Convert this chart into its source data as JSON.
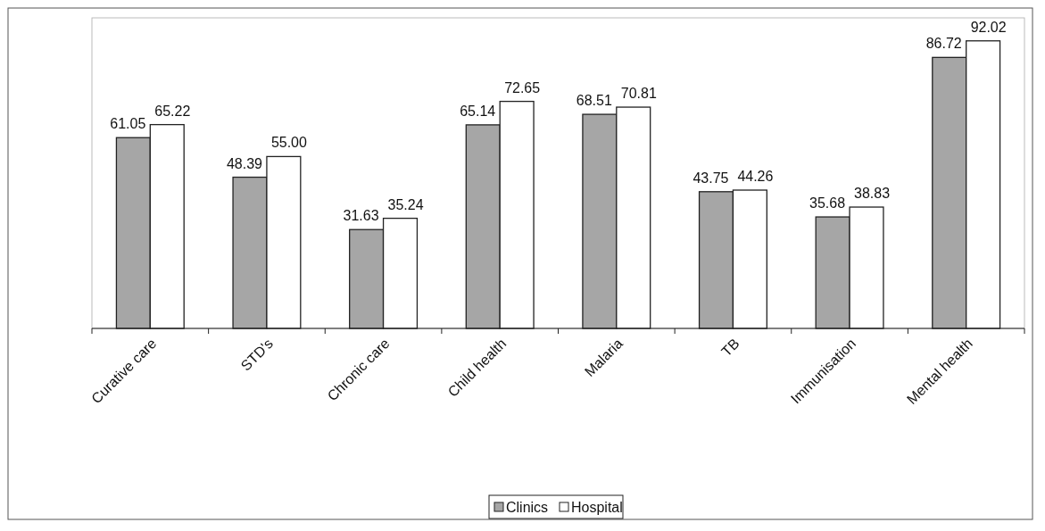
{
  "chart_data": {
    "type": "bar",
    "categories": [
      "Curative care",
      "STD's",
      "Chronic care",
      "Child health",
      "Malaria",
      "TB",
      "Immunisation",
      "Mental health"
    ],
    "series": [
      {
        "name": "Clinics",
        "color": "#a6a6a6",
        "values": [
          61.05,
          48.39,
          31.63,
          65.14,
          68.51,
          43.75,
          35.68,
          86.72
        ],
        "value_labels": [
          "61.05",
          "48.39",
          "31.63",
          "65.14",
          "68.51",
          "43.75",
          "35.68",
          "86.72"
        ]
      },
      {
        "name": "Hospital",
        "color": "#ffffff",
        "values": [
          65.22,
          55.0,
          35.24,
          72.65,
          70.81,
          44.26,
          38.83,
          92.02
        ],
        "value_labels": [
          "65.22",
          "55.00",
          "35.24",
          "72.65",
          "70.81",
          "44.26",
          "38.83",
          "92.02"
        ]
      }
    ],
    "legend": "bottom"
  }
}
